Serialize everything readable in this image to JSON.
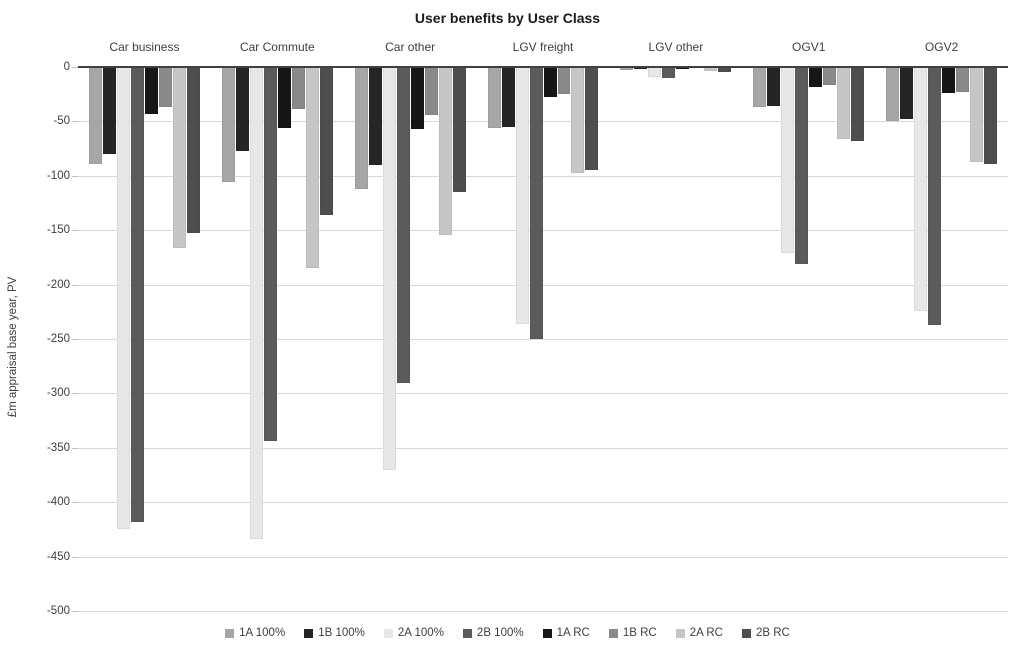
{
  "title": "User benefits by User Class",
  "y_axis": {
    "label": "£m appraisal base year, PV",
    "min": -500,
    "max": 0,
    "tick_step": 50,
    "ticks": [
      0,
      -50,
      -100,
      -150,
      -200,
      -250,
      -300,
      -350,
      -400,
      -450,
      -500
    ]
  },
  "chart_data": {
    "type": "bar",
    "title": "User benefits by User Class",
    "xlabel": "",
    "ylabel": "£m appraisal base year, PV",
    "ylim": [
      -500,
      0
    ],
    "grid": true,
    "legend_position": "bottom",
    "bar_direction": "down-from-zero",
    "categories": [
      "Car business",
      "Car Commute",
      "Car other",
      "LGV freight",
      "LGV other",
      "OGV1",
      "OGV2"
    ],
    "yticks": [
      0,
      -50,
      -100,
      -150,
      -200,
      -250,
      -300,
      -350,
      -400,
      -450,
      -500
    ],
    "series": [
      {
        "name": "1A 100%",
        "color": "#a6a6a6",
        "values": [
          -89,
          -106,
          -112,
          -56,
          -3,
          -37,
          -50
        ]
      },
      {
        "name": "1B 100%",
        "color": "#252525",
        "values": [
          -80,
          -77,
          -90,
          -55,
          -2,
          -36,
          -48
        ]
      },
      {
        "name": "2A 100%",
        "color": "#e8e7e7",
        "values": [
          -425,
          -434,
          -370,
          -236,
          -9,
          -171,
          -224
        ]
      },
      {
        "name": "2B 100%",
        "color": "#5b5b5b",
        "values": [
          -418,
          -344,
          -290,
          -250,
          -10,
          -181,
          -237
        ]
      },
      {
        "name": "1A RC",
        "color": "#161616",
        "values": [
          -43,
          -56,
          -57,
          -28,
          -2,
          -18,
          -24
        ]
      },
      {
        "name": "1B RC",
        "color": "#898989",
        "values": [
          -37,
          -39,
          -44,
          -25,
          -1,
          -17,
          -23
        ]
      },
      {
        "name": "2A RC",
        "color": "#c7c6c6",
        "values": [
          -166,
          -185,
          -154,
          -97,
          -4,
          -66,
          -87
        ]
      },
      {
        "name": "2B RC",
        "color": "#4e4e4e",
        "values": [
          -153,
          -136,
          -115,
          -95,
          -5,
          -68,
          -89
        ]
      }
    ]
  },
  "colors": {
    "gridline": "#d9d9d9",
    "zero_line": "#404040",
    "text": "#404040",
    "background": "#ffffff"
  }
}
